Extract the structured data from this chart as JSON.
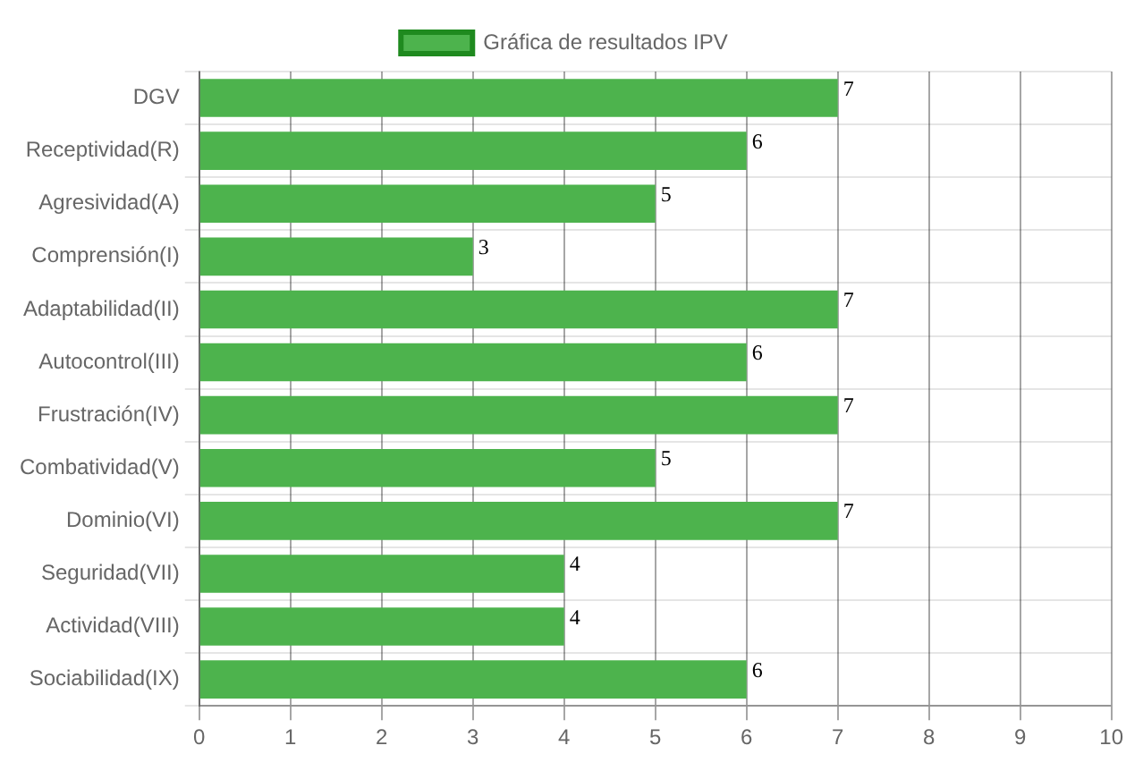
{
  "chart_data": {
    "type": "bar",
    "orientation": "horizontal",
    "categories": [
      "DGV",
      "Receptividad(R)",
      "Agresividad(A)",
      "Comprensión(I)",
      "Adaptabilidad(II)",
      "Autocontrol(III)",
      "Frustración(IV)",
      "Combatividad(V)",
      "Dominio(VI)",
      "Seguridad(VII)",
      "Actividad(VIII)",
      "Sociabilidad(IX)"
    ],
    "series": [
      {
        "name": "Gráfica de resultados IPV",
        "color": "#4db34d",
        "values": [
          7,
          6,
          5,
          3,
          7,
          6,
          7,
          5,
          7,
          4,
          4,
          6
        ]
      }
    ],
    "xlim": [
      0,
      10
    ],
    "xticks": [
      0,
      1,
      2,
      3,
      4,
      5,
      6,
      7,
      8,
      9,
      10
    ],
    "grid": true,
    "legend": "top",
    "data_labels": true
  }
}
